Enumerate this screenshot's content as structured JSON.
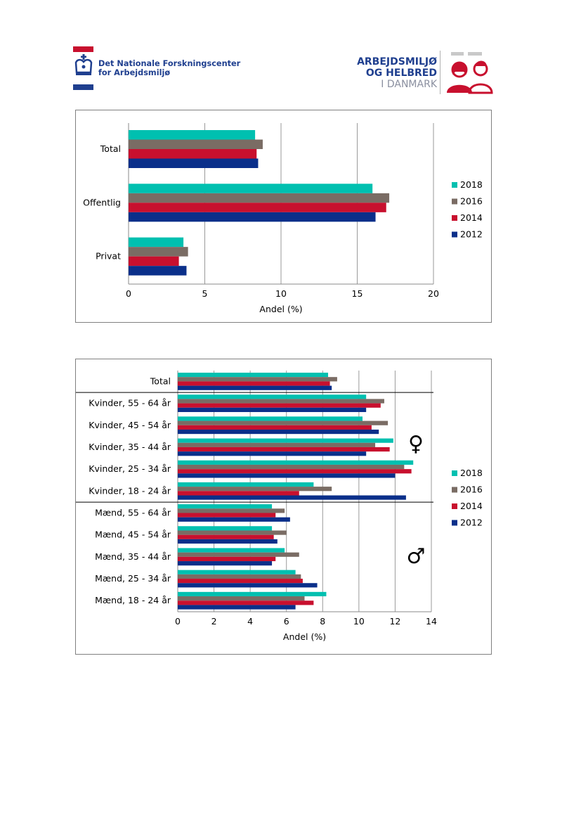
{
  "header": {
    "org_name_line1": "Det Nationale Forskningscenter",
    "org_name_line2": "for Arbejdsmiljø",
    "report_title_line1": "ARBEJDSMILJØ",
    "report_title_line2": "OG HELBRED",
    "report_title_line3": "I DANMARK"
  },
  "colors": {
    "2018": "#00c0b0",
    "2016": "#7a6c64",
    "2014": "#c8102e",
    "2012": "#0a2f8a",
    "brand_blue": "#1f3f8f",
    "brand_red": "#c8102e"
  },
  "chart_data": [
    {
      "type": "bar",
      "orientation": "horizontal",
      "categories": [
        "Total",
        "Offentlig",
        "Privat"
      ],
      "series": [
        {
          "name": "2018",
          "values": [
            8.3,
            16.0,
            3.6
          ]
        },
        {
          "name": "2016",
          "values": [
            8.8,
            17.1,
            3.9
          ]
        },
        {
          "name": "2014",
          "values": [
            8.4,
            16.9,
            3.3
          ]
        },
        {
          "name": "2012",
          "values": [
            8.5,
            16.2,
            3.8
          ]
        }
      ],
      "xlabel": "Andel (%)",
      "xlim": [
        0,
        20
      ],
      "xticks": [
        0,
        5,
        10,
        15,
        20
      ],
      "grid": "vertical",
      "legend": "right"
    },
    {
      "type": "bar",
      "orientation": "horizontal",
      "categories": [
        "Total",
        "Kvinder, 55 - 64 år",
        "Kvinder, 45 - 54 år",
        "Kvinder, 35 - 44 år",
        "Kvinder, 25 - 34 år",
        "Kvinder, 18 - 24 år",
        "Mænd, 55 - 64 år",
        "Mænd, 45 - 54 år",
        "Mænd, 35 - 44 år",
        "Mænd, 25 - 34 år",
        "Mænd, 18 - 24 år"
      ],
      "series": [
        {
          "name": "2018",
          "values": [
            8.3,
            10.4,
            10.2,
            11.9,
            13.0,
            7.5,
            5.2,
            5.2,
            5.9,
            6.5,
            8.2
          ]
        },
        {
          "name": "2016",
          "values": [
            8.8,
            11.4,
            11.6,
            10.9,
            12.5,
            8.5,
            5.9,
            6.0,
            6.7,
            6.8,
            7.0
          ]
        },
        {
          "name": "2014",
          "values": [
            8.4,
            11.2,
            10.7,
            11.7,
            12.9,
            6.7,
            5.4,
            5.3,
            5.4,
            6.9,
            7.5
          ]
        },
        {
          "name": "2012",
          "values": [
            8.5,
            10.4,
            11.1,
            10.4,
            12.0,
            12.6,
            6.2,
            5.5,
            5.2,
            7.7,
            6.5
          ]
        }
      ],
      "xlabel": "Andel (%)",
      "xlim": [
        0,
        14
      ],
      "xticks": [
        0,
        2,
        4,
        6,
        8,
        10,
        12,
        14
      ],
      "grid": "vertical",
      "legend": "right",
      "group_symbols": [
        "♀",
        "♂"
      ]
    }
  ]
}
